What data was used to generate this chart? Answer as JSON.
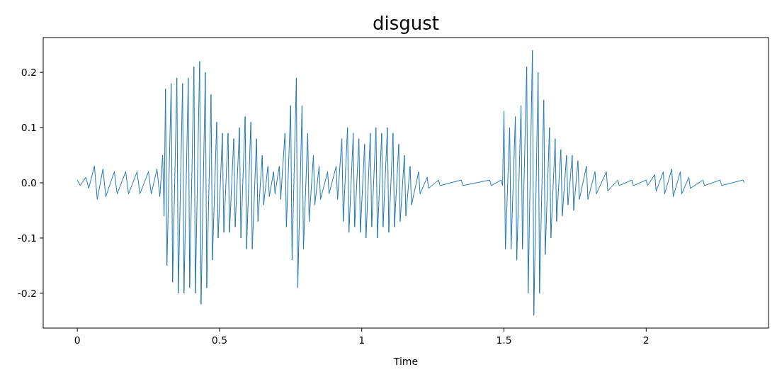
{
  "chart_data": {
    "type": "line",
    "title": "disgust",
    "xlabel": "Time",
    "xlim": [
      -0.12,
      2.43
    ],
    "xticks": [
      0,
      0.5,
      1,
      1.5,
      2
    ],
    "ylim": [
      -0.263,
      0.263
    ],
    "yticks": [
      {
        "value": -0.2,
        "label": "-0.2"
      },
      {
        "value": -0.1,
        "label": "-0.1"
      },
      {
        "value": 0,
        "label": "0.0"
      },
      0.1,
      0.2
    ],
    "grid": false,
    "marker": "none",
    "line_style": "solid",
    "series": [
      {
        "color": "#1f77b4",
        "x": [
          0,
          0.01,
          0.03,
          0.04,
          0.06,
          0.07,
          0.09,
          0.1,
          0.13,
          0.14,
          0.17,
          0.18,
          0.21,
          0.22,
          0.25,
          0.26,
          0.28,
          0.29,
          0.3,
          0.305,
          0.31,
          0.315,
          0.33,
          0.335,
          0.35,
          0.355,
          0.37,
          0.375,
          0.39,
          0.395,
          0.41,
          0.415,
          0.43,
          0.435,
          0.45,
          0.455,
          0.47,
          0.475,
          0.49,
          0.495,
          0.51,
          0.515,
          0.53,
          0.535,
          0.55,
          0.555,
          0.57,
          0.575,
          0.59,
          0.595,
          0.61,
          0.615,
          0.63,
          0.635,
          0.65,
          0.655,
          0.67,
          0.675,
          0.69,
          0.695,
          0.71,
          0.715,
          0.73,
          0.735,
          0.75,
          0.755,
          0.77,
          0.775,
          0.79,
          0.795,
          0.81,
          0.815,
          0.83,
          0.835,
          0.85,
          0.855,
          0.88,
          0.885,
          0.91,
          0.915,
          0.93,
          0.935,
          0.95,
          0.955,
          0.97,
          0.975,
          0.99,
          0.995,
          1.01,
          1.015,
          1.03,
          1.035,
          1.05,
          1.055,
          1.07,
          1.075,
          1.09,
          1.095,
          1.11,
          1.115,
          1.13,
          1.135,
          1.15,
          1.155,
          1.17,
          1.175,
          1.2,
          1.205,
          1.23,
          1.235,
          1.27,
          1.275,
          1.35,
          1.355,
          1.45,
          1.455,
          1.49,
          1.495,
          1.5,
          1.505,
          1.52,
          1.525,
          1.54,
          1.545,
          1.56,
          1.565,
          1.58,
          1.585,
          1.6,
          1.605,
          1.62,
          1.625,
          1.64,
          1.645,
          1.66,
          1.665,
          1.68,
          1.685,
          1.7,
          1.705,
          1.72,
          1.725,
          1.74,
          1.745,
          1.76,
          1.765,
          1.79,
          1.795,
          1.82,
          1.825,
          1.86,
          1.865,
          1.9,
          1.905,
          1.95,
          1.955,
          2.0,
          2.005,
          2.03,
          2.035,
          2.06,
          2.065,
          2.09,
          2.095,
          2.12,
          2.125,
          2.15,
          2.155,
          2.2,
          2.205,
          2.26,
          2.265,
          2.34,
          2.345
        ],
        "values": [
          0.005,
          -0.005,
          0.01,
          -0.01,
          0.03,
          -0.03,
          0.025,
          -0.025,
          0.02,
          -0.02,
          0.02,
          -0.02,
          0.02,
          -0.02,
          0.02,
          -0.02,
          0.025,
          -0.025,
          0.05,
          -0.06,
          0.17,
          -0.15,
          0.18,
          -0.18,
          0.19,
          -0.2,
          0.18,
          -0.2,
          0.19,
          -0.19,
          0.21,
          -0.2,
          0.22,
          -0.22,
          0.2,
          -0.19,
          0.16,
          -0.14,
          0.11,
          -0.1,
          0.09,
          -0.09,
          0.09,
          -0.09,
          0.08,
          -0.08,
          0.1,
          -0.1,
          0.12,
          -0.12,
          0.11,
          -0.12,
          0.08,
          -0.07,
          0.05,
          -0.04,
          0.03,
          -0.025,
          0.02,
          -0.02,
          0.03,
          -0.03,
          0.09,
          -0.08,
          0.14,
          -0.14,
          0.19,
          -0.19,
          0.14,
          -0.12,
          0.09,
          -0.07,
          0.05,
          -0.04,
          0.03,
          -0.03,
          0.02,
          -0.02,
          0.03,
          -0.03,
          0.08,
          -0.07,
          0.1,
          -0.09,
          0.09,
          -0.08,
          0.08,
          -0.09,
          0.07,
          -0.1,
          0.09,
          -0.08,
          0.1,
          -0.1,
          0.09,
          -0.08,
          0.1,
          -0.09,
          0.09,
          -0.08,
          0.07,
          -0.07,
          0.05,
          -0.06,
          0.03,
          -0.04,
          0.02,
          -0.02,
          0.01,
          -0.01,
          0.005,
          -0.005,
          0.005,
          -0.005,
          0.005,
          -0.005,
          0.005,
          -0.005,
          0.13,
          -0.12,
          0.1,
          -0.12,
          0.12,
          -0.14,
          0.14,
          -0.12,
          0.21,
          -0.2,
          0.24,
          -0.24,
          0.2,
          -0.2,
          0.15,
          -0.13,
          0.1,
          -0.1,
          0.08,
          -0.07,
          0.06,
          -0.06,
          0.05,
          -0.04,
          0.05,
          -0.05,
          0.04,
          -0.03,
          0.03,
          -0.03,
          0.02,
          -0.02,
          0.02,
          -0.015,
          0.005,
          -0.005,
          0.005,
          -0.005,
          0.005,
          -0.005,
          0.015,
          -0.015,
          0.02,
          -0.02,
          0.025,
          -0.025,
          0.02,
          -0.02,
          0.01,
          -0.01,
          0.005,
          -0.005,
          0.005,
          -0.005,
          0.005,
          0
        ]
      }
    ]
  }
}
